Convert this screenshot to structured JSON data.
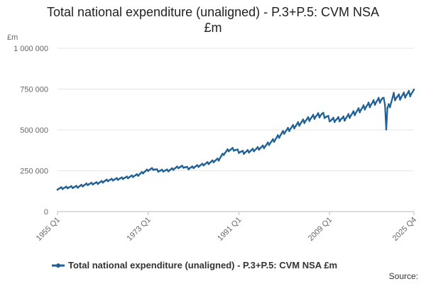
{
  "title_line1": "Total national expenditure (unaligned) - P.3+P.5: CVM NSA",
  "title_line2": "£m",
  "source_label": "Source:",
  "chart_data": {
    "type": "line",
    "ylabel": "£m",
    "xlabel": "",
    "ylim": [
      0,
      1000000
    ],
    "yticks": [
      0,
      250000,
      500000,
      750000,
      1000000
    ],
    "ytick_labels": [
      "0",
      "250 000",
      "500 000",
      "750 000",
      "1 000 000"
    ],
    "x_start": "1955 Q1",
    "x_end": "2025 Q4",
    "xticks": [
      "1955 Q1",
      "1973 Q1",
      "1991 Q1",
      "2009 Q1",
      "2025 Q4"
    ],
    "seasonal_amplitude": 6000,
    "series": [
      {
        "name": "Total national expenditure (unaligned) - P.3+P.5: CVM NSA £m",
        "color": "#206095",
        "points": [
          [
            1955,
            140000
          ],
          [
            1957,
            148000
          ],
          [
            1959,
            152000
          ],
          [
            1961,
            168000
          ],
          [
            1963,
            175000
          ],
          [
            1965,
            192000
          ],
          [
            1967,
            200000
          ],
          [
            1969,
            210000
          ],
          [
            1971,
            225000
          ],
          [
            1973,
            255000
          ],
          [
            1974,
            262000
          ],
          [
            1975,
            250000
          ],
          [
            1977,
            252000
          ],
          [
            1979,
            272000
          ],
          [
            1980,
            275000
          ],
          [
            1981,
            265000
          ],
          [
            1983,
            280000
          ],
          [
            1985,
            298000
          ],
          [
            1987,
            320000
          ],
          [
            1988,
            355000
          ],
          [
            1989,
            378000
          ],
          [
            1990,
            382000
          ],
          [
            1991,
            368000
          ],
          [
            1992,
            362000
          ],
          [
            1994,
            378000
          ],
          [
            1996,
            398000
          ],
          [
            1998,
            438000
          ],
          [
            2000,
            488000
          ],
          [
            2002,
            522000
          ],
          [
            2004,
            555000
          ],
          [
            2006,
            582000
          ],
          [
            2007.5,
            595000
          ],
          [
            2008.5,
            578000
          ],
          [
            2009.25,
            560000
          ],
          [
            2010,
            562000
          ],
          [
            2012,
            570000
          ],
          [
            2014,
            605000
          ],
          [
            2016,
            640000
          ],
          [
            2018,
            670000
          ],
          [
            2019.5,
            690000
          ],
          [
            2020.0,
            670000
          ],
          [
            2020.25,
            505000
          ],
          [
            2020.5,
            630000
          ],
          [
            2021,
            655000
          ],
          [
            2021.75,
            710000
          ],
          [
            2022,
            698000
          ],
          [
            2023,
            702000
          ],
          [
            2024,
            715000
          ],
          [
            2025.75,
            730000
          ]
        ]
      }
    ]
  }
}
